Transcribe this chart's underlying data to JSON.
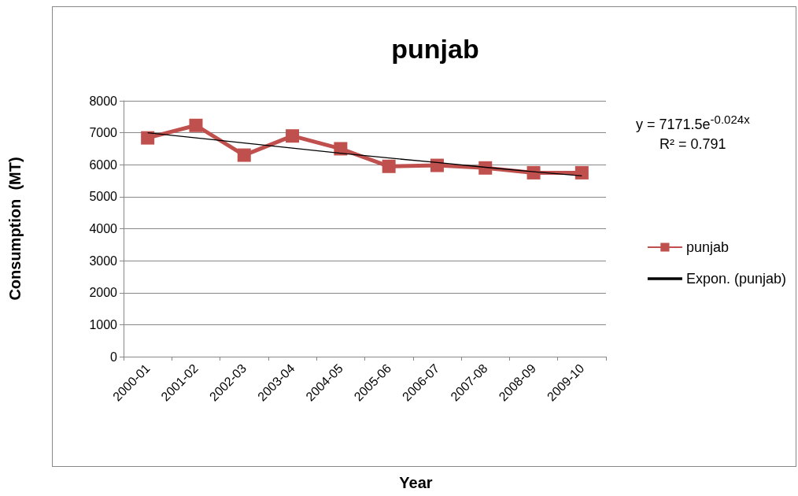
{
  "chart_data": {
    "type": "line",
    "title": "punjab",
    "xlabel": "Year",
    "ylabel": "Consumption  (MT)",
    "categories": [
      "2000-01",
      "2001-02",
      "2002-03",
      "2003-04",
      "2004-05",
      "2005-06",
      "2006-07",
      "2007-08",
      "2008-09",
      "2009-10"
    ],
    "series": [
      {
        "name": "punjab",
        "color": "#c0504d",
        "marker": "square",
        "values": [
          6840,
          7230,
          6300,
          6900,
          6500,
          5950,
          5980,
          5900,
          5750,
          5750
        ]
      },
      {
        "name": "Expon. (punjab)",
        "color": "#000000",
        "marker": "none",
        "values": [
          7000,
          6840,
          6680,
          6520,
          6360,
          6210,
          6070,
          5920,
          5780,
          5650
        ]
      }
    ],
    "ylim": [
      0,
      8000
    ],
    "yticks": [
      0,
      1000,
      2000,
      3000,
      4000,
      5000,
      6000,
      7000,
      8000
    ],
    "grid": "y",
    "legend": "right",
    "annotations": [
      "y = 7171.5e$^{-0.024x}$",
      "R² = 0.791"
    ]
  }
}
